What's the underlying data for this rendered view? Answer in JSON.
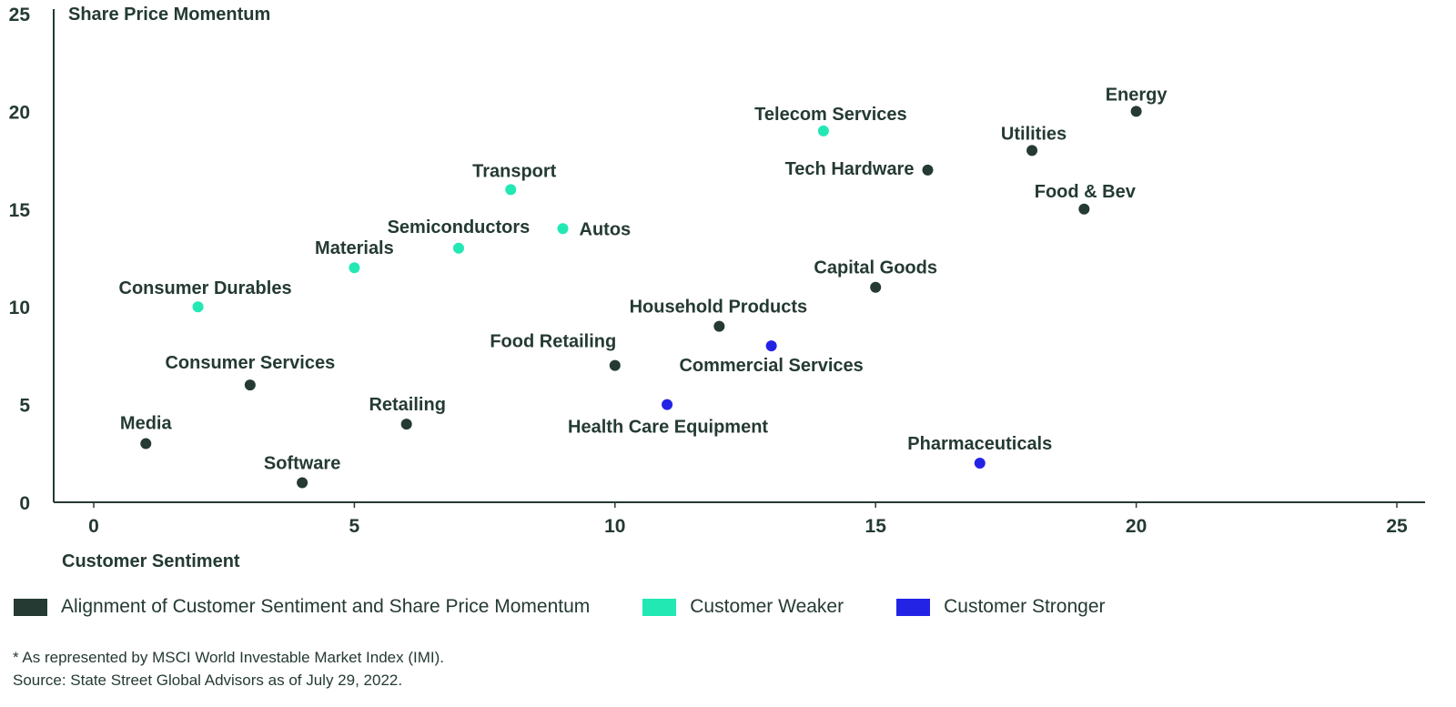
{
  "chart_data": {
    "type": "scatter",
    "title": "",
    "xlabel": "Customer Sentiment",
    "ylabel": "Share Price Momentum",
    "xlim": [
      -0.8,
      25.5
    ],
    "ylim": [
      0,
      25
    ],
    "xticks": [
      0,
      5,
      10,
      15,
      20,
      25
    ],
    "yticks": [
      0,
      5,
      10,
      15,
      20,
      25
    ],
    "grid": false,
    "legend_position": "bottom-left",
    "colors": {
      "alignment": "#243a33",
      "weaker": "#22e8b4",
      "stronger": "#2323e6"
    },
    "series": [
      {
        "name": "Alignment of Customer Sentiment and Share Price Momentum",
        "key": "alignment"
      },
      {
        "name": "Customer Weaker",
        "key": "weaker"
      },
      {
        "name": "Customer Stronger",
        "key": "stronger"
      }
    ],
    "points": [
      {
        "label": "Energy",
        "x": 20,
        "y": 20,
        "series": "alignment"
      },
      {
        "label": "Telecom Services",
        "x": 14,
        "y": 19,
        "series": "weaker"
      },
      {
        "label": "Utilities",
        "x": 18,
        "y": 18,
        "series": "alignment"
      },
      {
        "label": "Tech Hardware",
        "x": 16,
        "y": 17,
        "series": "alignment"
      },
      {
        "label": "Transport",
        "x": 8,
        "y": 16,
        "series": "weaker"
      },
      {
        "label": "Food & Bev",
        "x": 19,
        "y": 15,
        "series": "alignment"
      },
      {
        "label": "Autos",
        "x": 9,
        "y": 14,
        "series": "weaker"
      },
      {
        "label": "Semiconductors",
        "x": 7,
        "y": 13,
        "series": "weaker"
      },
      {
        "label": "Materials",
        "x": 5,
        "y": 12,
        "series": "weaker"
      },
      {
        "label": "Capital Goods",
        "x": 15,
        "y": 11,
        "series": "alignment"
      },
      {
        "label": "Consumer Durables",
        "x": 2,
        "y": 10,
        "series": "weaker"
      },
      {
        "label": "Household Products",
        "x": 12,
        "y": 9,
        "series": "alignment"
      },
      {
        "label": "Commercial Services",
        "x": 13,
        "y": 8,
        "series": "stronger"
      },
      {
        "label": "Food Retailing",
        "x": 10,
        "y": 7,
        "series": "alignment"
      },
      {
        "label": "Consumer Services",
        "x": 3,
        "y": 6,
        "series": "alignment"
      },
      {
        "label": "Health Care Equipment",
        "x": 11,
        "y": 5,
        "series": "stronger"
      },
      {
        "label": "Retailing",
        "x": 6,
        "y": 4,
        "series": "alignment"
      },
      {
        "label": "Media",
        "x": 1,
        "y": 3,
        "series": "alignment"
      },
      {
        "label": "Pharmaceuticals",
        "x": 17,
        "y": 2,
        "series": "stronger"
      },
      {
        "label": "Software",
        "x": 4,
        "y": 1,
        "series": "alignment"
      }
    ]
  },
  "legend": {
    "items": [
      {
        "label": "Alignment of Customer Sentiment and Share Price Momentum"
      },
      {
        "label": "Customer Weaker"
      },
      {
        "label": "Customer Stronger"
      }
    ]
  },
  "notes": {
    "footnote": "* As represented by MSCI World Investable Market Index (IMI).",
    "source": "Source: State Street Global Advisors as of July 29, 2022."
  }
}
